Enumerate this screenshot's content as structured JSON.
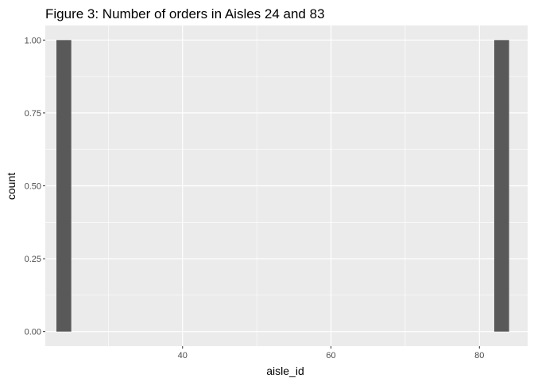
{
  "chart_data": {
    "type": "bar",
    "title": "Figure 3: Number of orders in Aisles 24 and 83",
    "xlabel": "aisle_id",
    "ylabel": "count",
    "xlim": [
      21.5,
      86.5
    ],
    "ylim": [
      -0.05,
      1.05
    ],
    "x_ticks": [
      40,
      60,
      80
    ],
    "x_tick_labels": [
      "40",
      "60",
      "80"
    ],
    "x_minor_ticks": [
      30,
      50,
      70
    ],
    "y_ticks": [
      0,
      0.25,
      0.5,
      0.75,
      1
    ],
    "y_tick_labels": [
      "0.00",
      "0.25",
      "0.50",
      "0.75",
      "1.00"
    ],
    "bar_width": 2,
    "bars": [
      {
        "x": 24,
        "value": 1
      },
      {
        "x": 83,
        "value": 1
      }
    ],
    "grid": true,
    "colors": {
      "panel": "#ebebeb",
      "grid": "#ffffff",
      "bar": "#595959"
    }
  }
}
